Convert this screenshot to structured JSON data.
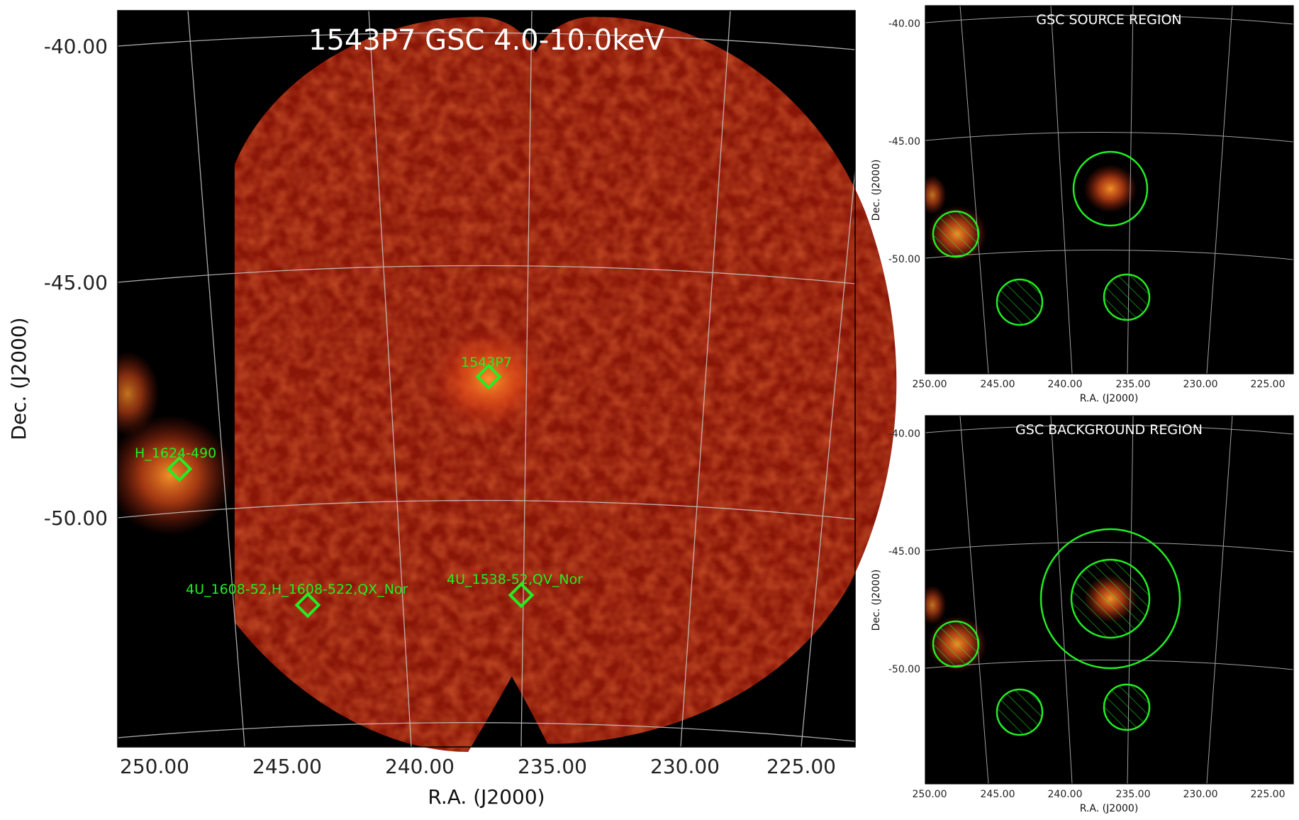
{
  "main_panel": {
    "title": "1543P7 GSC 4.0-10.0keV",
    "xlabel": "R.A. (J2000)",
    "ylabel": "Dec. (J2000)",
    "x_ticks": [
      "250.00",
      "245.00",
      "240.00",
      "235.00",
      "230.00",
      "225.00"
    ],
    "y_ticks": [
      "-40.00",
      "-45.00",
      "-50.00"
    ],
    "sources": [
      {
        "label": "1543P7",
        "ra": 236.7,
        "dec": -47.2
      },
      {
        "label": "H_1624-490",
        "ra": 248.1,
        "dec": -49.0
      },
      {
        "label": "4U_1608-52,H_1608-522,QX_Nor",
        "ra": 243.4,
        "dec": -52.0
      },
      {
        "label": "4U_1538-52,QV_Nor",
        "ra": 235.4,
        "dec": -51.8
      }
    ]
  },
  "source_panel": {
    "title": "GSC SOURCE REGION",
    "xlabel": "R.A. (J2000)",
    "ylabel": "Dec. (J2000)",
    "x_ticks": [
      "250.00",
      "245.00",
      "240.00",
      "235.00",
      "230.00",
      "225.00"
    ],
    "y_ticks": [
      "-40.00",
      "-45.00",
      "-50.00"
    ]
  },
  "background_panel": {
    "title": "GSC BACKGROUND REGION",
    "xlabel": "R.A. (J2000)",
    "ylabel": "Dec. (J2000)",
    "x_ticks": [
      "250.00",
      "245.00",
      "240.00",
      "235.00",
      "230.00",
      "225.00"
    ],
    "y_ticks": [
      "-40.00",
      "-45.00",
      "-50.00"
    ]
  },
  "colors": {
    "background": "#000000",
    "map_base": "#8a1608",
    "marker": "#22ee22",
    "grid": "#c8c8c8",
    "title_text": "#ffffff"
  }
}
